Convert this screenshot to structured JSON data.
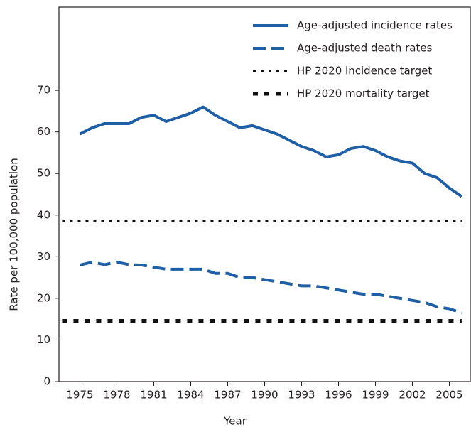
{
  "chart_data": {
    "type": "line",
    "x_label": "Year",
    "y_label": "Rate per 100,000 population",
    "x": [
      1975,
      1976,
      1977,
      1978,
      1979,
      1980,
      1981,
      1982,
      1983,
      1984,
      1985,
      1986,
      1987,
      1988,
      1989,
      1990,
      1991,
      1992,
      1993,
      1994,
      1995,
      1996,
      1997,
      1998,
      1999,
      2000,
      2001,
      2002,
      2003,
      2004,
      2005,
      2006
    ],
    "xlim": [
      1973.3,
      2006.7
    ],
    "xticks": [
      1975,
      1978,
      1981,
      1984,
      1987,
      1990,
      1993,
      1996,
      1999,
      2002,
      2005
    ],
    "ylim": [
      0,
      90
    ],
    "yticks": [
      0,
      10,
      20,
      30,
      40,
      50,
      60,
      70
    ],
    "legend": "upper right",
    "series": [
      {
        "name": "Age-adjusted incidence rates",
        "color": "#1f5fa6",
        "style": "solid",
        "values": [
          59.5,
          61,
          62,
          62,
          62,
          63.5,
          64,
          62.5,
          63.5,
          64.5,
          66,
          64,
          62.5,
          61,
          61.5,
          60.5,
          59.5,
          58,
          56.5,
          55.5,
          54,
          54.5,
          56,
          56.5,
          55.5,
          54,
          53,
          52.5,
          50,
          49,
          46.5,
          44.5
        ]
      },
      {
        "name": "Age-adjusted death rates",
        "color": "#1f5fa6",
        "style": "dashed",
        "values": [
          28,
          28.7,
          28.1,
          28.7,
          28.1,
          28,
          27.5,
          27,
          27,
          27,
          27,
          26,
          26,
          25,
          25,
          24.5,
          24,
          23.5,
          23,
          23,
          22.5,
          22,
          21.5,
          21,
          21,
          20.5,
          20,
          19.5,
          19,
          18,
          17.5,
          16.5
        ]
      }
    ],
    "targets": [
      {
        "name": "HP 2020 incidence target",
        "color": "#111111",
        "style": "dotted",
        "value": 38.6
      },
      {
        "name": "HP 2020 mortality target",
        "color": "#111111",
        "style": "dashed-short",
        "value": 14.6
      }
    ]
  }
}
